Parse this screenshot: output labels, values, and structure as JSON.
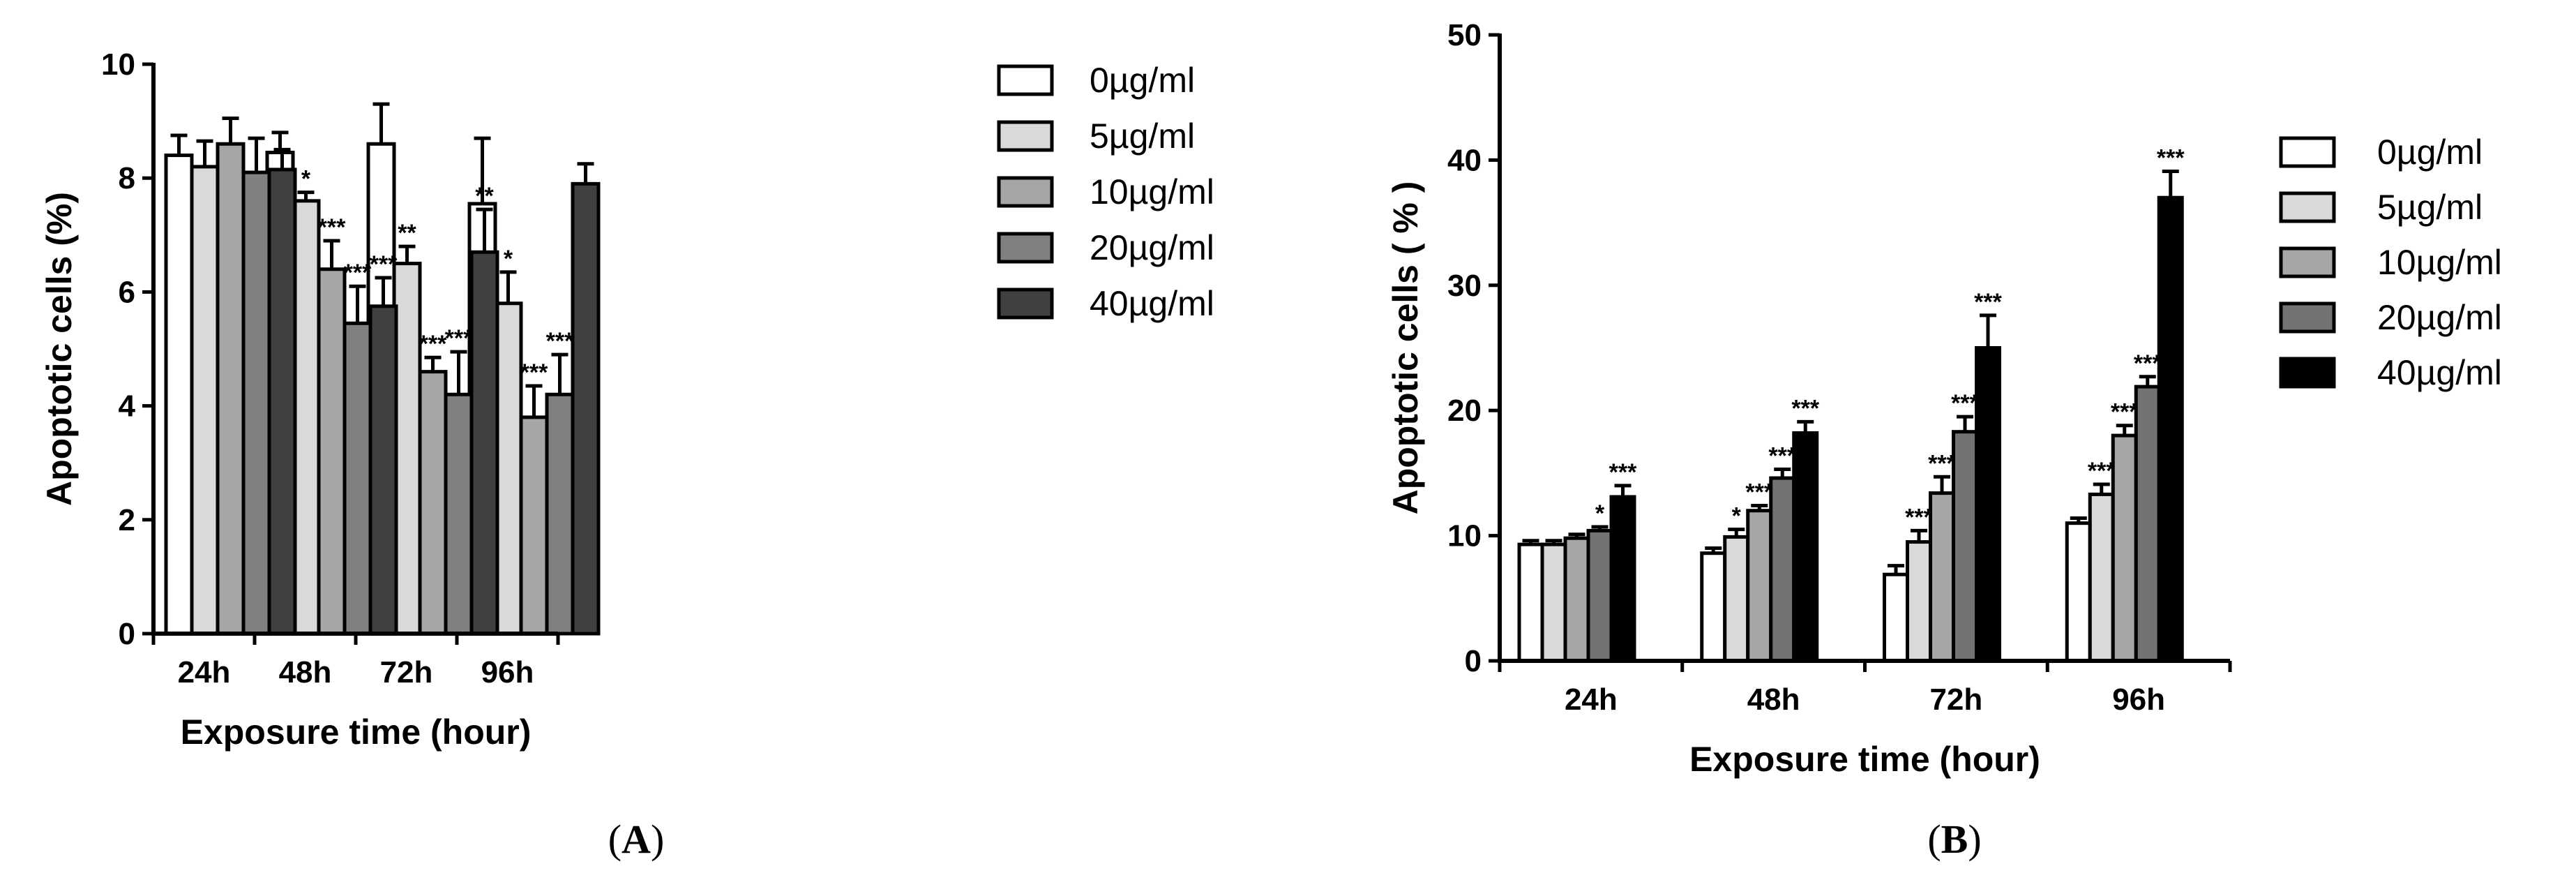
{
  "chart_data": [
    {
      "type": "bar",
      "panel_label": "A",
      "categories": [
        "24h",
        "48h",
        "72h",
        "96h"
      ],
      "xlabel": "Exposure time (hour)",
      "ylabel": "Apoptotic cells (%)",
      "ylim": [
        0,
        10
      ],
      "yticks": [
        "0",
        "2",
        "4",
        "6",
        "8",
        "10"
      ],
      "grid": false,
      "legend_position": "right",
      "series": [
        {
          "name": "0µg/ml",
          "color": "#ffffff",
          "values": [
            8.4,
            8.45,
            8.6,
            7.55
          ],
          "errors": [
            0.35,
            0.35,
            0.7,
            1.15
          ],
          "significance": [
            "",
            "",
            "",
            ""
          ]
        },
        {
          "name": "5µg/ml",
          "color": "#d9d9d9",
          "values": [
            8.2,
            7.6,
            6.5,
            5.8
          ],
          "errors": [
            0.45,
            0.15,
            0.3,
            0.55
          ],
          "significance": [
            "",
            "*",
            "**",
            "*"
          ]
        },
        {
          "name": "10µg/ml",
          "color": "#a6a6a6",
          "values": [
            8.6,
            6.4,
            4.6,
            3.8
          ],
          "errors": [
            0.45,
            0.5,
            0.25,
            0.55
          ],
          "significance": [
            "",
            "***",
            "***",
            "***"
          ]
        },
        {
          "name": "20µg/ml",
          "color": "#808080",
          "values": [
            8.1,
            5.45,
            4.2,
            4.2
          ],
          "errors": [
            0.6,
            0.65,
            0.75,
            0.7
          ],
          "significance": [
            "",
            "***",
            "***",
            "***"
          ]
        },
        {
          "name": "40µg/ml",
          "color": "#404040",
          "values": [
            8.15,
            5.75,
            6.7,
            7.9
          ],
          "errors": [
            0.35,
            0.5,
            0.75,
            0.35
          ],
          "significance": [
            "",
            "***",
            "**",
            ""
          ]
        }
      ]
    },
    {
      "type": "bar",
      "panel_label": "B",
      "categories": [
        "24h",
        "48h",
        "72h",
        "96h"
      ],
      "xlabel": "Exposure time (hour)",
      "ylabel": "Apoptotic cells ( % )",
      "ylim": [
        0,
        50
      ],
      "yticks": [
        "0",
        "10",
        "20",
        "30",
        "40",
        "50"
      ],
      "grid": false,
      "legend_position": "right",
      "series": [
        {
          "name": "0µg/ml",
          "color": "#ffffff",
          "values": [
            9.3,
            8.6,
            6.9,
            11.0
          ],
          "errors": [
            0.3,
            0.4,
            0.7,
            0.4
          ],
          "significance": [
            "",
            "",
            "",
            ""
          ]
        },
        {
          "name": "5µg/ml",
          "color": "#d9d9d9",
          "values": [
            9.3,
            9.9,
            9.5,
            13.3
          ],
          "errors": [
            0.3,
            0.6,
            0.9,
            0.8
          ],
          "significance": [
            "",
            "*",
            "***",
            "***"
          ]
        },
        {
          "name": "10µg/ml",
          "color": "#a6a6a6",
          "values": [
            9.8,
            12.0,
            13.4,
            18.0
          ],
          "errors": [
            0.3,
            0.4,
            1.3,
            0.8
          ],
          "significance": [
            "",
            "***",
            "***",
            "***"
          ]
        },
        {
          "name": "20µg/ml",
          "color": "#737373",
          "values": [
            10.4,
            14.6,
            18.3,
            21.9
          ],
          "errors": [
            0.3,
            0.7,
            1.2,
            0.8
          ],
          "significance": [
            "*",
            "***",
            "***",
            "***"
          ]
        },
        {
          "name": "40µg/ml",
          "color": "#000000",
          "values": [
            13.1,
            18.2,
            25.0,
            37.0
          ],
          "errors": [
            0.9,
            0.9,
            2.6,
            2.1
          ],
          "significance": [
            "***",
            "***",
            "***",
            "***"
          ]
        }
      ]
    }
  ]
}
